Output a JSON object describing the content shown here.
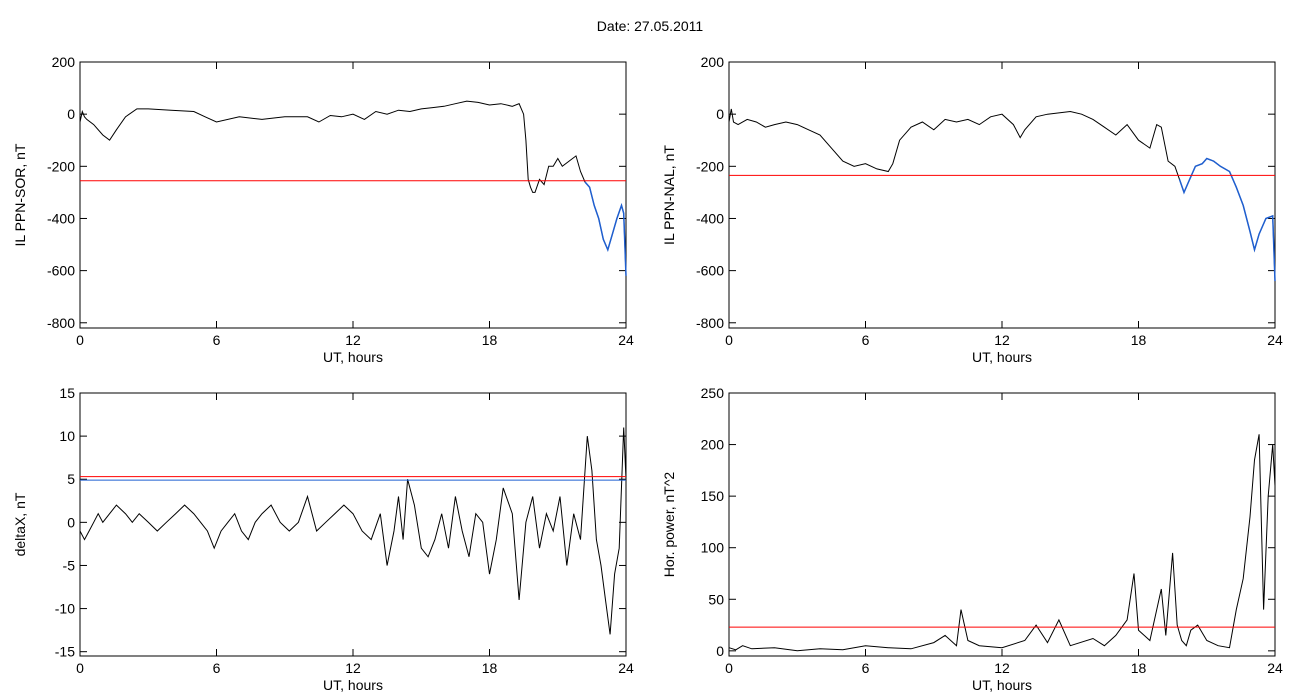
{
  "suptitle": "Date:  27.05.2011",
  "chart_data": [
    {
      "type": "line",
      "panel": "top-left",
      "ylabel": "IL PPN-SOR, nT",
      "xlabel": "UT, hours",
      "xlim": [
        0,
        24
      ],
      "ylim": [
        -820,
        200
      ],
      "xticks": [
        0,
        6,
        12,
        18,
        24
      ],
      "yticks": [
        200,
        0,
        -200,
        -400,
        -600,
        -800
      ],
      "series": [
        {
          "color": "#000000",
          "x": [
            0,
            0.1,
            0.2,
            0.3,
            0.6,
            1.0,
            1.3,
            1.6,
            2.0,
            2.5,
            3.0,
            4.0,
            5.0,
            5.5,
            6.0,
            7.0,
            8.0,
            9.0,
            10.0,
            10.5,
            11.0,
            11.5,
            12.0,
            12.5,
            13.0,
            13.5,
            14.0,
            14.5,
            15.0,
            15.5,
            16.0,
            16.5,
            17.0,
            17.5,
            18.0,
            18.5,
            19.0,
            19.3,
            19.5,
            19.6,
            19.7,
            19.8,
            19.9,
            20.0,
            20.2,
            20.4,
            20.6,
            20.8,
            21.0,
            21.2,
            21.5,
            21.8,
            22.0,
            22.2,
            22.4,
            22.6,
            22.8,
            23.0,
            23.2,
            23.4,
            23.6,
            23.8,
            23.9,
            24.0
          ],
          "y": [
            -30,
            10,
            -10,
            -20,
            -40,
            -80,
            -100,
            -60,
            -10,
            20,
            20,
            15,
            10,
            -10,
            -30,
            -10,
            -20,
            -10,
            -10,
            -30,
            -5,
            -10,
            0,
            -20,
            10,
            0,
            15,
            10,
            20,
            25,
            30,
            40,
            50,
            45,
            35,
            40,
            30,
            40,
            0,
            -100,
            -250,
            -280,
            -300,
            -300,
            -250,
            -270,
            -200,
            -200,
            -170,
            -200,
            -180,
            -160,
            -220,
            -260,
            -280,
            -350,
            -400,
            -480,
            -520,
            -460,
            -400,
            -350,
            -380,
            -620
          ]
        },
        {
          "color": "#1f5fd0",
          "x": [
            22.2,
            22.4,
            22.6,
            22.8,
            23.0,
            23.2,
            23.4,
            23.6,
            23.8,
            23.9,
            24.0
          ],
          "y": [
            -260,
            -280,
            -350,
            -400,
            -480,
            -520,
            -460,
            -400,
            -350,
            -380,
            -620
          ]
        },
        {
          "color": "#ff0000",
          "x": [
            0,
            24
          ],
          "y": [
            -255,
            -255
          ]
        }
      ]
    },
    {
      "type": "line",
      "panel": "top-right",
      "ylabel": "IL PPN-NAL, nT",
      "xlabel": "UT, hours",
      "xlim": [
        0,
        24
      ],
      "ylim": [
        -820,
        200
      ],
      "xticks": [
        0,
        6,
        12,
        18,
        24
      ],
      "yticks": [
        200,
        0,
        -200,
        -400,
        -600,
        -800
      ],
      "series": [
        {
          "color": "#000000",
          "x": [
            0,
            0.1,
            0.2,
            0.4,
            0.8,
            1.2,
            1.6,
            2.0,
            2.5,
            3.0,
            3.5,
            4.0,
            4.5,
            5.0,
            5.5,
            6.0,
            6.5,
            7.0,
            7.2,
            7.5,
            8.0,
            8.5,
            9.0,
            9.5,
            10.0,
            10.5,
            11.0,
            11.5,
            12.0,
            12.5,
            12.8,
            13.0,
            13.5,
            14.0,
            14.5,
            15.0,
            15.5,
            16.0,
            16.5,
            17.0,
            17.5,
            18.0,
            18.5,
            18.8,
            19.0,
            19.3,
            19.6,
            19.8,
            20.0,
            20.2,
            20.5,
            20.8,
            21.0,
            21.3,
            21.6,
            22.0,
            22.3,
            22.6,
            22.9,
            23.1,
            23.3,
            23.6,
            23.9,
            24.0
          ],
          "y": [
            -30,
            20,
            -30,
            -40,
            -20,
            -30,
            -50,
            -40,
            -30,
            -40,
            -60,
            -80,
            -130,
            -180,
            -200,
            -190,
            -210,
            -220,
            -190,
            -100,
            -50,
            -30,
            -60,
            -20,
            -30,
            -20,
            -40,
            -10,
            0,
            -40,
            -90,
            -60,
            -10,
            0,
            5,
            10,
            0,
            -20,
            -50,
            -80,
            -40,
            -100,
            -130,
            -40,
            -50,
            -180,
            -200,
            -250,
            -300,
            -260,
            -200,
            -190,
            -170,
            -180,
            -200,
            -220,
            -280,
            -350,
            -450,
            -520,
            -460,
            -400,
            -390,
            -640
          ]
        },
        {
          "color": "#1f5fd0",
          "x": [
            19.8,
            20.0,
            20.2,
            20.5,
            20.8,
            21.0,
            21.3,
            21.6,
            22.0,
            22.3,
            22.6,
            22.9,
            23.1,
            23.3,
            23.6,
            23.9,
            24.0
          ],
          "y": [
            -250,
            -300,
            -260,
            -200,
            -190,
            -170,
            -180,
            -200,
            -220,
            -280,
            -350,
            -450,
            -520,
            -460,
            -400,
            -390,
            -640
          ]
        },
        {
          "color": "#ff0000",
          "x": [
            0,
            24
          ],
          "y": [
            -235,
            -235
          ]
        }
      ]
    },
    {
      "type": "line",
      "panel": "bottom-left",
      "ylabel": "deltaX, nT",
      "xlabel": "UT, hours",
      "xlim": [
        0,
        24
      ],
      "ylim": [
        -15.5,
        15
      ],
      "xticks": [
        0,
        6,
        12,
        18,
        24
      ],
      "yticks": [
        15,
        10,
        5,
        0,
        -5,
        -10,
        -15
      ],
      "series": [
        {
          "color": "#000000",
          "x": [
            0,
            0.2,
            0.4,
            0.6,
            0.8,
            1.0,
            1.3,
            1.6,
            2.0,
            2.3,
            2.6,
            3.0,
            3.4,
            3.8,
            4.2,
            4.6,
            5.0,
            5.3,
            5.6,
            5.9,
            6.2,
            6.5,
            6.8,
            7.1,
            7.4,
            7.7,
            8.0,
            8.4,
            8.8,
            9.2,
            9.6,
            10.0,
            10.4,
            10.8,
            11.2,
            11.6,
            12.0,
            12.4,
            12.8,
            13.2,
            13.5,
            13.8,
            14.0,
            14.2,
            14.4,
            14.7,
            15.0,
            15.3,
            15.6,
            15.9,
            16.2,
            16.5,
            16.8,
            17.1,
            17.4,
            17.7,
            18.0,
            18.3,
            18.6,
            19.0,
            19.3,
            19.6,
            19.9,
            20.2,
            20.5,
            20.8,
            21.1,
            21.4,
            21.7,
            22.0,
            22.3,
            22.5,
            22.7,
            22.9,
            23.1,
            23.3,
            23.5,
            23.7,
            23.9,
            24.0
          ],
          "y": [
            -1,
            -2,
            -1,
            0,
            1,
            0,
            1,
            2,
            1,
            0,
            1,
            0,
            -1,
            0,
            1,
            2,
            1,
            0,
            -1,
            -3,
            -1,
            0,
            1,
            -1,
            -2,
            0,
            1,
            2,
            0,
            -1,
            0,
            3,
            -1,
            0,
            1,
            2,
            1,
            -1,
            -2,
            1,
            -5,
            -1,
            3,
            -2,
            5,
            2,
            -3,
            -4,
            -2,
            1,
            -3,
            3,
            -1,
            -4,
            1,
            0,
            -6,
            -2,
            4,
            1,
            -9,
            0,
            3,
            -3,
            1,
            -1,
            3,
            -5,
            1,
            -2,
            10,
            6,
            -2,
            -5,
            -9,
            -13,
            -6,
            -3,
            11,
            5
          ]
        },
        {
          "color": "#ff0000",
          "x": [
            0,
            24
          ],
          "y": [
            5.3,
            5.3
          ]
        },
        {
          "color": "#1f5fd0",
          "x": [
            0,
            24
          ],
          "y": [
            4.9,
            4.9
          ]
        }
      ]
    },
    {
      "type": "line",
      "panel": "bottom-right",
      "ylabel": "Hor. power, nT^2",
      "xlabel": "UT, hours",
      "xlim": [
        0,
        24
      ],
      "ylim": [
        -5,
        250
      ],
      "xticks": [
        0,
        6,
        12,
        18,
        24
      ],
      "yticks": [
        250,
        200,
        150,
        100,
        50,
        0
      ],
      "series": [
        {
          "color": "#000000",
          "x": [
            0,
            0.3,
            0.6,
            1,
            2,
            3,
            4,
            5,
            6,
            7,
            8,
            9,
            9.5,
            10,
            10.2,
            10.5,
            11,
            12,
            13,
            13.5,
            14,
            14.5,
            15,
            16,
            16.5,
            17,
            17.5,
            17.8,
            18,
            18.5,
            19,
            19.2,
            19.5,
            19.7,
            19.9,
            20.1,
            20.3,
            20.6,
            21,
            21.5,
            22,
            22.3,
            22.6,
            22.9,
            23.1,
            23.3,
            23.5,
            23.7,
            23.9,
            24.0
          ],
          "y": [
            3,
            1,
            5,
            2,
            3,
            0,
            2,
            1,
            5,
            3,
            2,
            8,
            15,
            5,
            40,
            10,
            5,
            3,
            10,
            25,
            8,
            30,
            5,
            12,
            5,
            15,
            30,
            75,
            20,
            10,
            60,
            15,
            95,
            25,
            10,
            5,
            20,
            25,
            10,
            5,
            3,
            40,
            70,
            130,
            185,
            210,
            40,
            150,
            200,
            160
          ]
        },
        {
          "color": "#ff0000",
          "x": [
            0,
            24
          ],
          "y": [
            23,
            23
          ]
        }
      ]
    }
  ]
}
